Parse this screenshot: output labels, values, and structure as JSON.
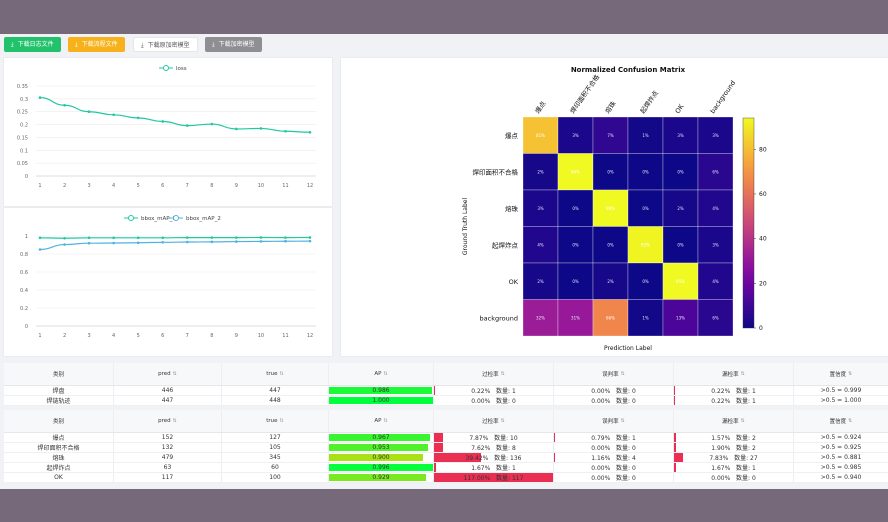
{
  "toolbar": {
    "buttons": [
      {
        "label": "下载日志文件",
        "bg": "#22c16b",
        "fg": "#ffffff",
        "icon": "download-icon"
      },
      {
        "label": "下载流程文件",
        "bg": "#f7b11b",
        "fg": "#ffffff",
        "icon": "download-icon"
      },
      {
        "label": "下载原加密模型",
        "bg": "#ffffff",
        "fg": "#555555",
        "icon": "download-icon"
      },
      {
        "label": "下载加密模型",
        "bg": "#8e8e93",
        "fg": "#ffffff",
        "icon": "download-icon"
      }
    ]
  },
  "loss_chart": {
    "legend": "loss",
    "color": "#1fc8a0",
    "x": [
      1,
      2,
      3,
      4,
      5,
      6,
      7,
      8,
      9,
      10,
      11,
      12
    ],
    "y": [
      0.305,
      0.275,
      0.25,
      0.238,
      0.226,
      0.212,
      0.196,
      0.202,
      0.183,
      0.185,
      0.174,
      0.17
    ],
    "ylim": [
      0,
      0.35
    ],
    "yticks": [
      "0",
      "0.05",
      "0.1",
      "0.15",
      "0.2",
      "0.25",
      "0.3",
      "0.35"
    ]
  },
  "map_chart": {
    "series": [
      {
        "name": "bbox_mAP_1",
        "color": "#1fc8a0",
        "y": [
          0.98,
          0.975,
          0.98,
          0.98,
          0.98,
          0.98,
          0.982,
          0.982,
          0.982,
          0.983,
          0.982,
          0.983
        ]
      },
      {
        "name": "bbox_mAP_2",
        "color": "#4db3e0",
        "y": [
          0.85,
          0.905,
          0.92,
          0.922,
          0.925,
          0.93,
          0.933,
          0.935,
          0.938,
          0.94,
          0.942,
          0.943
        ]
      }
    ],
    "x": [
      1,
      2,
      3,
      4,
      5,
      6,
      7,
      8,
      9,
      10,
      11,
      12
    ],
    "ylim": [
      0,
      1
    ],
    "yticks": [
      "0",
      "0.2",
      "0.4",
      "0.6",
      "0.8",
      "1"
    ]
  },
  "confusion": {
    "title": "Normalized Confusion Matrix",
    "xlabel": "Prediction Label",
    "ylabel": "Ground Truth Label",
    "labels": [
      "爆点",
      "焊印面积不合格",
      "熔珠",
      "起焊炸点",
      "OK",
      "background"
    ],
    "matrix": [
      [
        81,
        3,
        7,
        1,
        3,
        3
      ],
      [
        2,
        94,
        0,
        0,
        0,
        6
      ],
      [
        3,
        0,
        96,
        0,
        2,
        4
      ],
      [
        4,
        0,
        0,
        93,
        0,
        3
      ],
      [
        2,
        0,
        2,
        0,
        95,
        4
      ],
      [
        32,
        31,
        66,
        1,
        13,
        6
      ]
    ],
    "colorbar_ticks": [
      "0",
      "20",
      "40",
      "60",
      "80"
    ],
    "vmax": 94
  },
  "table1": {
    "headers": [
      "类别",
      "pred",
      "true",
      "AP",
      "过检率",
      "误判率",
      "漏检率",
      "置信度"
    ],
    "rows": [
      {
        "cls": "焊盘",
        "pred": "446",
        "true": "447",
        "ap": 0.986,
        "ap_text": "0.986",
        "r1": "0.22%",
        "n1": "数量: 1",
        "f1": 0.002,
        "r2": "0.00%",
        "n2": "数量: 0",
        "f2": 0,
        "r3": "0.22%",
        "n3": "数量: 1",
        "f3": 0.002,
        "conf": ">0.5 = 0.999"
      },
      {
        "cls": "焊链轨迹",
        "pred": "447",
        "true": "448",
        "ap": 1.0,
        "ap_text": "1.000",
        "r1": "0.00%",
        "n1": "数量: 0",
        "f1": 0,
        "r2": "0.00%",
        "n2": "数量: 0",
        "f2": 0,
        "r3": "0.22%",
        "n3": "数量: 1",
        "f3": 0.002,
        "conf": ">0.5 = 1.000"
      }
    ]
  },
  "table2": {
    "headers": [
      "类别",
      "pred",
      "true",
      "AP",
      "过检率",
      "误判率",
      "漏检率",
      "置信度"
    ],
    "rows": [
      {
        "cls": "爆点",
        "pred": "152",
        "true": "127",
        "ap": 0.967,
        "ap_text": "0.967",
        "r1": "7.87%",
        "n1": "数量: 10",
        "f1": 0.079,
        "r2": "0.79%",
        "n2": "数量: 1",
        "f2": 0.008,
        "r3": "1.57%",
        "n3": "数量: 2",
        "f3": 0.016,
        "conf": ">0.5 = 0.924"
      },
      {
        "cls": "焊印面积不合格",
        "pred": "132",
        "true": "105",
        "ap": 0.953,
        "ap_text": "0.953",
        "r1": "7.62%",
        "n1": "数量: 8",
        "f1": 0.076,
        "r2": "0.00%",
        "n2": "数量: 0",
        "f2": 0,
        "r3": "1.90%",
        "n3": "数量: 2",
        "f3": 0.019,
        "conf": ">0.5 = 0.925"
      },
      {
        "cls": "熔珠",
        "pred": "479",
        "true": "345",
        "ap": 0.9,
        "ap_text": "0.900",
        "r1": "39.42%",
        "n1": "数量: 136",
        "f1": 0.394,
        "r2": "1.16%",
        "n2": "数量: 4",
        "f2": 0.012,
        "r3": "7.83%",
        "n3": "数量: 27",
        "f3": 0.078,
        "conf": ">0.5 = 0.881"
      },
      {
        "cls": "起焊炸点",
        "pred": "63",
        "true": "60",
        "ap": 0.996,
        "ap_text": "0.996",
        "r1": "1.67%",
        "n1": "数量: 1",
        "f1": 0.017,
        "r2": "0.00%",
        "n2": "数量: 0",
        "f2": 0,
        "r3": "1.67%",
        "n3": "数量: 1",
        "f3": 0.017,
        "conf": ">0.5 = 0.985"
      },
      {
        "cls": "OK",
        "pred": "117",
        "true": "100",
        "ap": 0.929,
        "ap_text": "0.929",
        "r1": "117.00%",
        "n1": "数量: 117",
        "f1": 1.0,
        "r2": "0.00%",
        "n2": "数量: 0",
        "f2": 0,
        "r3": "0.00%",
        "n3": "数量: 0",
        "f3": 0,
        "conf": ">0.5 = 0.940"
      }
    ]
  }
}
